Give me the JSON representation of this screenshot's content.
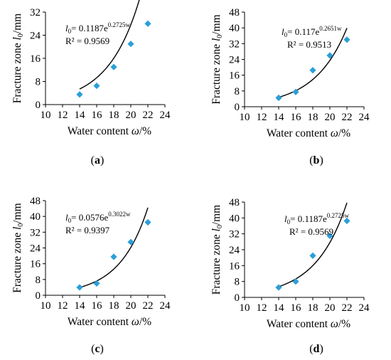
{
  "chart_data": [
    {
      "type": "scatter",
      "panel_label": "(a)",
      "xlabel_parts": [
        "Water content ",
        "ω",
        "/%"
      ],
      "ylabel_parts": [
        "Fracture zone ",
        "l",
        "0",
        "/mm"
      ],
      "xlim": [
        10,
        24
      ],
      "ylim": [
        0,
        32
      ],
      "xticks": [
        10,
        12,
        14,
        16,
        18,
        20,
        22,
        24
      ],
      "yticks": [
        0,
        8,
        16,
        24,
        32
      ],
      "x": [
        14,
        16,
        18,
        20,
        22
      ],
      "y": [
        3.5,
        6.5,
        13,
        21,
        28
      ],
      "fit": {
        "a": 0.1187,
        "b": 0.2725,
        "x_range": [
          14,
          22
        ]
      },
      "equation": {
        "lhs": "l",
        "sub": "0",
        "body": "= 0.1187e",
        "exp": "0.2725w"
      },
      "r2": "R² = 0.9569",
      "marker_color": "#2B9FD8",
      "line_color": "#000000",
      "grid": false
    },
    {
      "type": "scatter",
      "panel_label": "(b)",
      "xlabel_parts": [
        "Water content ",
        "ω",
        "/%"
      ],
      "ylabel_parts": [
        "Fracture zone ",
        "l",
        "0",
        "/mm"
      ],
      "xlim": [
        10,
        24
      ],
      "ylim": [
        0,
        48
      ],
      "xticks": [
        10,
        12,
        14,
        16,
        18,
        20,
        22,
        24
      ],
      "yticks": [
        0,
        8,
        16,
        24,
        32,
        40,
        48
      ],
      "x": [
        14,
        16,
        18,
        20,
        22
      ],
      "y": [
        4.5,
        7.5,
        18.5,
        26,
        34
      ],
      "fit": {
        "a": 0.117,
        "b": 0.2651,
        "x_range": [
          14,
          22
        ]
      },
      "equation": {
        "lhs": "l",
        "sub": "0",
        "body": "= 0.117e",
        "exp": "0.2651w"
      },
      "r2": "R² = 0.9513",
      "marker_color": "#2B9FD8",
      "line_color": "#000000",
      "grid": false
    },
    {
      "type": "scatter",
      "panel_label": "(c)",
      "xlabel_parts": [
        "Water content ",
        "ω",
        "/%"
      ],
      "ylabel_parts": [
        "Fracture zone ",
        "l",
        "0",
        "/mm"
      ],
      "xlim": [
        10,
        24
      ],
      "ylim": [
        0,
        48
      ],
      "xticks": [
        10,
        12,
        14,
        16,
        18,
        20,
        22,
        24
      ],
      "yticks": [
        0,
        8,
        16,
        24,
        32,
        40,
        48
      ],
      "x": [
        14,
        16,
        18,
        20,
        22
      ],
      "y": [
        4,
        6,
        19.5,
        27,
        37
      ],
      "fit": {
        "a": 0.0576,
        "b": 0.3022,
        "x_range": [
          14,
          22
        ]
      },
      "equation": {
        "lhs": "l",
        "sub": "0",
        "body": "= 0.0576e",
        "exp": "0.3022w"
      },
      "r2": "R² = 0.9397",
      "marker_color": "#2B9FD8",
      "line_color": "#000000",
      "grid": false
    },
    {
      "type": "scatter",
      "panel_label": "(d)",
      "xlabel_parts": [
        "Water content ",
        "ω",
        "/%"
      ],
      "ylabel_parts": [
        "Fracture zone ",
        "l",
        "0",
        "/mm"
      ],
      "xlim": [
        10,
        24
      ],
      "ylim": [
        0,
        48
      ],
      "xticks": [
        10,
        12,
        14,
        16,
        18,
        20,
        22,
        24
      ],
      "yticks": [
        0,
        8,
        16,
        24,
        32,
        40,
        48
      ],
      "x": [
        14,
        16,
        18,
        20,
        22
      ],
      "y": [
        5,
        8,
        21,
        31,
        38.5
      ],
      "fit": {
        "a": 0.1187,
        "b": 0.2725,
        "x_range": [
          14,
          22
        ]
      },
      "equation": {
        "lhs": "l",
        "sub": "0",
        "body": "= 0.1187e",
        "exp": "0.2725w"
      },
      "r2": "R² = 0.9569",
      "marker_color": "#2B9FD8",
      "line_color": "#000000",
      "grid": false
    }
  ]
}
